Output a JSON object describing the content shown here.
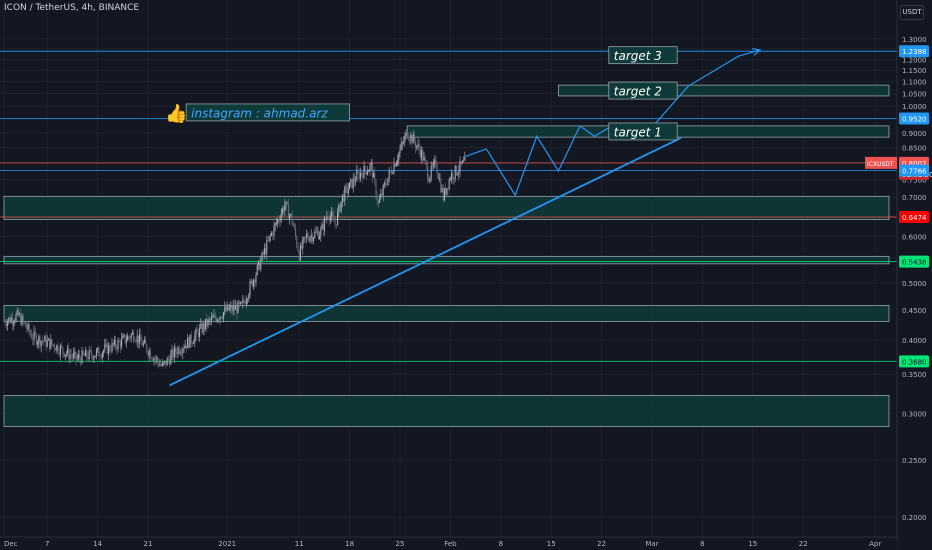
{
  "header": {
    "title": "ICON / TetherUS, 4h, BINANCE",
    "currency": "USDT"
  },
  "colors": {
    "background": "#131722",
    "grid": "#1e222d",
    "axis_text": "#b2b5be",
    "zone_fill": "#0f3a3a",
    "zone_stroke": "#9aa0aa",
    "blue": "#2196f3",
    "red": "#ef5350",
    "green": "#00e676",
    "candle_up": "#b2b5be",
    "candle_down": "#6b6f7a"
  },
  "annotations": {
    "instagram": "instagram : ahmad.arz",
    "target1": "target 1",
    "target2": "target 2",
    "target3": "target 3"
  },
  "chart_data": {
    "type": "candlestick",
    "title": "ICON / TetherUS, 4h, BINANCE",
    "y_scale": "log",
    "ylim": [
      0.185,
      1.4
    ],
    "y_ticks": [
      0.2,
      0.25,
      0.3,
      0.35,
      0.4,
      0.45,
      0.5,
      0.55,
      0.6,
      0.65,
      0.7,
      0.75,
      0.8,
      0.85,
      0.9,
      0.95,
      1.0,
      1.05,
      1.1,
      1.15,
      1.2,
      1.25,
      1.3
    ],
    "y_tick_labels": [
      "0.2000",
      "0.2500",
      "0.3000",
      "0.3500",
      "0.4000",
      "0.4500",
      "0.5000",
      "0.5500",
      "0.6000",
      "0.6500",
      "0.7000",
      "0.7500",
      "0.8000",
      "0.8500",
      "0.9000",
      "0.9500",
      "1.0000",
      "1.0500",
      "1.1000",
      "1.1500",
      "1.2000",
      "1.2500",
      "1.3000"
    ],
    "x_labels": [
      {
        "text": "Dec",
        "day": 0
      },
      {
        "text": "7",
        "day": 6
      },
      {
        "text": "14",
        "day": 13
      },
      {
        "text": "21",
        "day": 20
      },
      {
        "text": "2021",
        "day": 31
      },
      {
        "text": "11",
        "day": 41
      },
      {
        "text": "18",
        "day": 48
      },
      {
        "text": "25",
        "day": 55
      },
      {
        "text": "Feb",
        "day": 62
      },
      {
        "text": "8",
        "day": 69
      },
      {
        "text": "15",
        "day": 76
      },
      {
        "text": "22",
        "day": 83
      },
      {
        "text": "Mar",
        "day": 90
      },
      {
        "text": "8",
        "day": 97
      },
      {
        "text": "15",
        "day": 104
      },
      {
        "text": "22",
        "day": 111
      },
      {
        "text": "Apr",
        "day": 121
      }
    ],
    "x_range_days": [
      0,
      124
    ],
    "price_path": [
      [
        0,
        0.43
      ],
      [
        2,
        0.44
      ],
      [
        4,
        0.405
      ],
      [
        7,
        0.392
      ],
      [
        10,
        0.372
      ],
      [
        13,
        0.38
      ],
      [
        16,
        0.395
      ],
      [
        18,
        0.41
      ],
      [
        20,
        0.385
      ],
      [
        22,
        0.36
      ],
      [
        24,
        0.385
      ],
      [
        26,
        0.4
      ],
      [
        28,
        0.425
      ],
      [
        31,
        0.45
      ],
      [
        33,
        0.455
      ],
      [
        35,
        0.52
      ],
      [
        37,
        0.6
      ],
      [
        39,
        0.68
      ],
      [
        40,
        0.64
      ],
      [
        41,
        0.56
      ],
      [
        42,
        0.6
      ],
      [
        44,
        0.61
      ],
      [
        45,
        0.66
      ],
      [
        46,
        0.63
      ],
      [
        47,
        0.7
      ],
      [
        49,
        0.76
      ],
      [
        51,
        0.79
      ],
      [
        52,
        0.68
      ],
      [
        53,
        0.74
      ],
      [
        55,
        0.84
      ],
      [
        56,
        0.9
      ],
      [
        57,
        0.87
      ],
      [
        58,
        0.83
      ],
      [
        59,
        0.76
      ],
      [
        60,
        0.8
      ],
      [
        61,
        0.7
      ],
      [
        62,
        0.76
      ],
      [
        63,
        0.78
      ],
      [
        64,
        0.8
      ]
    ],
    "price_levels": [
      {
        "label": "1.2388",
        "value": 1.2388,
        "color": "#2196f3",
        "line": true
      },
      {
        "label": "0.9520",
        "value": 0.952,
        "color": "#2196f3",
        "line": true
      },
      {
        "label": "0.8002",
        "value": 0.8002,
        "color": "#ef5350",
        "line": true,
        "symbol": "ICXUSDT",
        "timer": "01:01:30"
      },
      {
        "label": "0.7766",
        "value": 0.7766,
        "color": "#2196f3",
        "line": true
      },
      {
        "label": "0.6474",
        "value": 0.6474,
        "color": "#ef5350",
        "line": true,
        "label_bg": "#ff0000"
      },
      {
        "label": "0.5438",
        "value": 0.5438,
        "color": "#00e676",
        "line": true,
        "text_color": "#131722"
      },
      {
        "label": "0.3680",
        "value": 0.368,
        "color": "#00e676",
        "line": true,
        "text_color": "#131722"
      }
    ],
    "zones": [
      {
        "from_day": 0,
        "to_day": 124,
        "low": 0.641,
        "high": 0.702
      },
      {
        "from_day": 0,
        "to_day": 124,
        "low": 0.539,
        "high": 0.555
      },
      {
        "from_day": 0,
        "to_day": 124,
        "low": 0.43,
        "high": 0.458
      },
      {
        "from_day": 0,
        "to_day": 124,
        "low": 0.285,
        "high": 0.322
      },
      {
        "from_day": 56,
        "to_day": 124,
        "low": 0.885,
        "high": 0.925
      },
      {
        "from_day": 77,
        "to_day": 124,
        "low": 1.04,
        "high": 1.085
      }
    ],
    "trendline": [
      [
        23,
        0.335
      ],
      [
        94,
        0.882
      ]
    ],
    "projection": [
      [
        64,
        0.82
      ],
      [
        67,
        0.845
      ],
      [
        71,
        0.705
      ],
      [
        74,
        0.888
      ],
      [
        77,
        0.775
      ],
      [
        80,
        0.925
      ],
      [
        82,
        0.888
      ],
      [
        84,
        0.918
      ],
      [
        85,
        0.893
      ],
      [
        86,
        0.92
      ],
      [
        88,
        0.893
      ],
      [
        90,
        0.92
      ],
      [
        95,
        1.08
      ],
      [
        102,
        1.215
      ],
      [
        105,
        1.245
      ]
    ]
  }
}
